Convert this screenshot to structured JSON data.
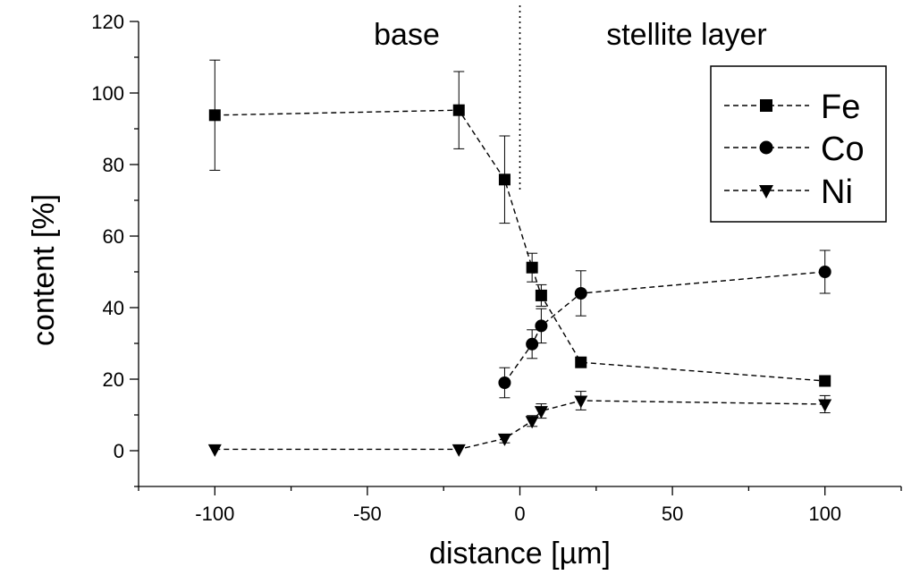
{
  "chart_data": {
    "type": "scatter",
    "xlabel": "distance [µm]",
    "ylabel": "content [%]",
    "xlim": [
      -125,
      125
    ],
    "ylim": [
      -10,
      120
    ],
    "x_ticks": [
      -100,
      -50,
      0,
      50,
      100
    ],
    "x_tick_labels": [
      "-100",
      "-50",
      "0",
      "50",
      "100"
    ],
    "y_ticks": [
      0,
      20,
      40,
      60,
      80,
      100,
      120
    ],
    "y_tick_labels": [
      "0",
      "20",
      "40",
      "60",
      "80",
      "100",
      "120"
    ],
    "grid": false,
    "legend_position": "top-right",
    "divider_x": 0,
    "annotations": [
      {
        "text": "base",
        "region": "left of divider"
      },
      {
        "text": "stellite layer",
        "region": "right of divider"
      }
    ],
    "series": [
      {
        "name": "Fe",
        "marker": "square",
        "line": "dashed",
        "x": [
          -100,
          -20,
          -5,
          4,
          7,
          20,
          100
        ],
        "y": [
          93.8,
          95.2,
          75.8,
          51.2,
          43.4,
          24.7,
          19.5
        ],
        "err": [
          15.4,
          10.8,
          12.2,
          4.0,
          3.0,
          0.8,
          0.8
        ]
      },
      {
        "name": "Co",
        "marker": "circle",
        "line": "dashed",
        "x": [
          -5,
          4,
          7,
          20,
          100
        ],
        "y": [
          19.0,
          29.8,
          34.9,
          44.0,
          50.0
        ],
        "err": [
          4.2,
          4.0,
          4.8,
          6.3,
          6.0
        ]
      },
      {
        "name": "Ni",
        "marker": "triangle-down",
        "line": "dashed",
        "x": [
          -100,
          -20,
          -5,
          4,
          7,
          20,
          100
        ],
        "y": [
          0.4,
          0.4,
          3.4,
          8.3,
          11.1,
          14.0,
          13.0
        ],
        "err": [
          0,
          0,
          1.2,
          1.5,
          2.0,
          2.6,
          2.4
        ]
      }
    ]
  }
}
